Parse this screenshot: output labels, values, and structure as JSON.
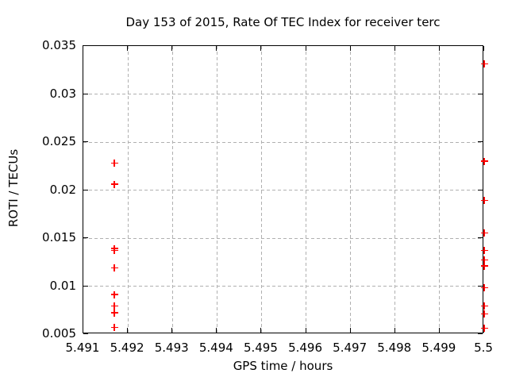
{
  "chart_data": {
    "type": "scatter",
    "title": "Day 153 of 2015, Rate Of TEC Index for receiver terc",
    "xlabel": "GPS time / hours",
    "ylabel": "ROTI / TECUs",
    "xlim": [
      5.491,
      5.5
    ],
    "ylim": [
      0.005,
      0.035
    ],
    "grid": "dashed",
    "grid_color": "#b0b0b0",
    "axis_color": "#000000",
    "background_color": "#ffffff",
    "legend": "none",
    "marker": "plus",
    "marker_color": "#ff0000",
    "x_ticks": [
      {
        "v": 5.491,
        "label": "5.491"
      },
      {
        "v": 5.492,
        "label": "5.492"
      },
      {
        "v": 5.493,
        "label": "5.493"
      },
      {
        "v": 5.494,
        "label": "5.494"
      },
      {
        "v": 5.495,
        "label": "5.495"
      },
      {
        "v": 5.496,
        "label": "5.496"
      },
      {
        "v": 5.497,
        "label": "5.497"
      },
      {
        "v": 5.498,
        "label": "5.498"
      },
      {
        "v": 5.499,
        "label": "5.499"
      },
      {
        "v": 5.5,
        "label": "5.5"
      }
    ],
    "y_ticks": [
      {
        "v": 0.005,
        "label": "0.005"
      },
      {
        "v": 0.01,
        "label": "0.01"
      },
      {
        "v": 0.015,
        "label": "0.015"
      },
      {
        "v": 0.02,
        "label": "0.02"
      },
      {
        "v": 0.025,
        "label": "0.025"
      },
      {
        "v": 0.03,
        "label": "0.03"
      },
      {
        "v": 0.035,
        "label": "0.035"
      }
    ],
    "series": [
      {
        "name": "ROTI",
        "color": "#ff0000",
        "points": [
          [
            5.4917,
            0.0228
          ],
          [
            5.4917,
            0.0206
          ],
          [
            5.4917,
            0.0139
          ],
          [
            5.4917,
            0.0137
          ],
          [
            5.4917,
            0.0119
          ],
          [
            5.4917,
            0.0091
          ],
          [
            5.4917,
            0.0079
          ],
          [
            5.4917,
            0.0072
          ],
          [
            5.4917,
            0.0057
          ],
          [
            5.5,
            0.0331
          ],
          [
            5.5,
            0.023
          ],
          [
            5.5,
            0.0189
          ],
          [
            5.5,
            0.0155
          ],
          [
            5.5,
            0.0137
          ],
          [
            5.5,
            0.0127
          ],
          [
            5.5,
            0.0121
          ],
          [
            5.5,
            0.0098
          ],
          [
            5.5,
            0.0079
          ],
          [
            5.5,
            0.0071
          ],
          [
            5.5,
            0.0056
          ]
        ]
      }
    ]
  }
}
